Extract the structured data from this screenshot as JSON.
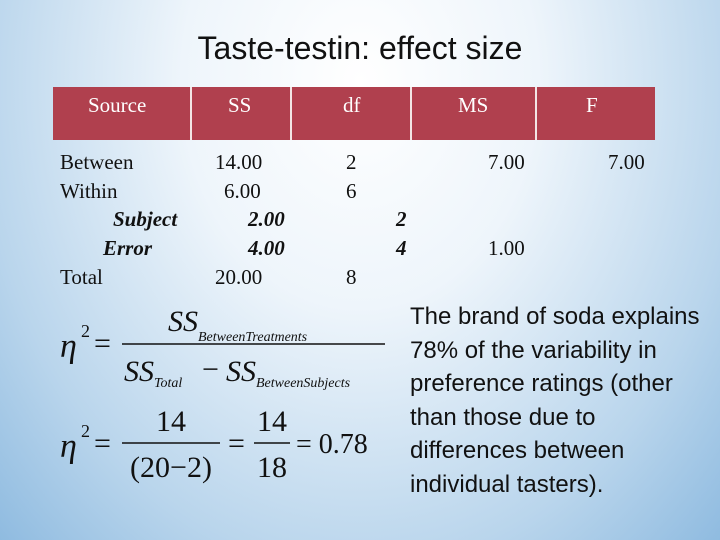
{
  "title": "Taste-testin: effect size",
  "table": {
    "header": [
      "Source",
      "SS",
      "df",
      "MS",
      "F"
    ],
    "rows": [
      {
        "source": "Between",
        "ss": "14.00",
        "df": "2",
        "ms": "7.00",
        "f": "7.00"
      },
      {
        "source": "Within",
        "ss": "6.00",
        "df": "6"
      },
      {
        "source": "Subject",
        "ss": "2.00",
        "df_sub": "2"
      },
      {
        "source": "Error",
        "ss": "4.00",
        "df_sub": "4",
        "ms": "1.00"
      },
      {
        "source": "Total",
        "ss": "20.00",
        "df": "8"
      }
    ]
  },
  "formula1": {
    "eta": "η",
    "sup": "2",
    "equals": "=",
    "num_main": "SS",
    "num_sub": "BetweenTreatments",
    "den_a_main": "SS",
    "den_a_sub": "Total",
    "minus": "−",
    "den_b_main": "SS",
    "den_b_sub": "BetweenSubjects"
  },
  "formula2": {
    "eta": "η",
    "sup": "2",
    "equals": "=",
    "num1": "14",
    "den1": "(20−2)",
    "num2": "14",
    "den2": "18",
    "result": "= 0.78"
  },
  "explanation": "The brand of soda explains 78% of the variability in preference ratings (other than those due to differences between individual tasters)."
}
